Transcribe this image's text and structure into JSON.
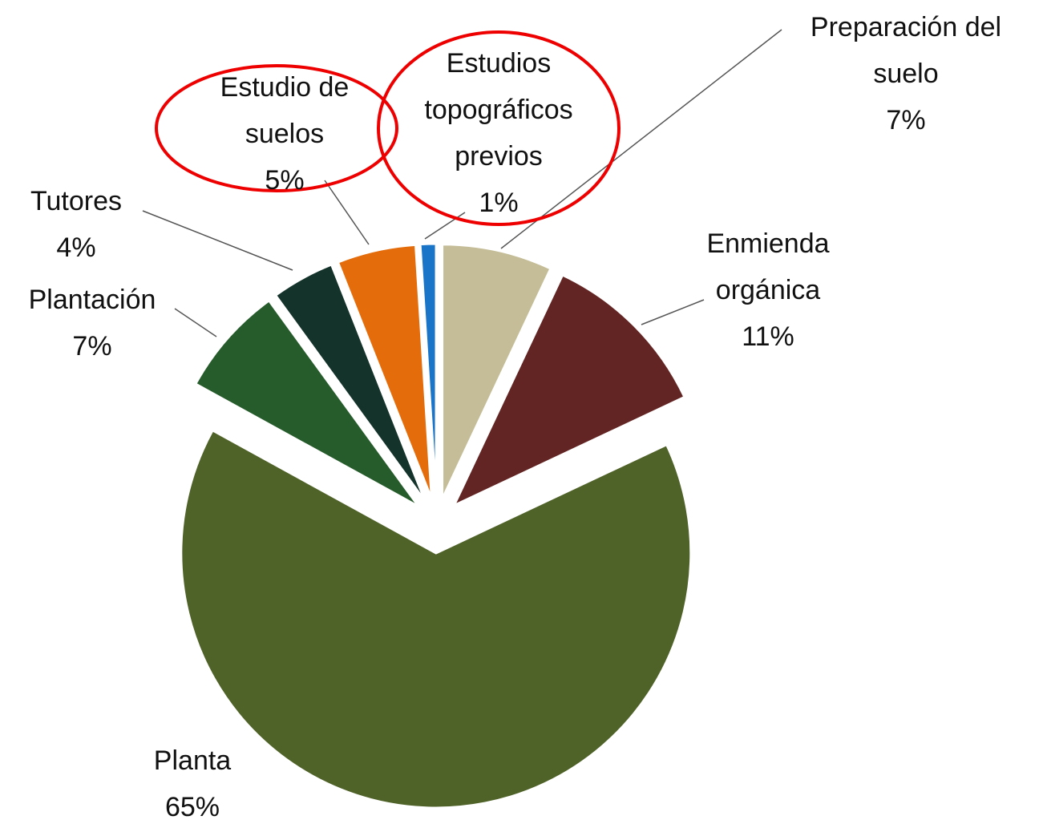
{
  "chart_data": {
    "type": "pie",
    "categories": [
      "Preparación del suelo",
      "Enmienda orgánica",
      "Planta",
      "Plantación",
      "Tutores",
      "Estudio de suelos",
      "Estudios topográficos previos"
    ],
    "values": [
      7,
      11,
      65,
      7,
      4,
      5,
      1
    ],
    "value_labels": [
      "7%",
      "11%",
      "65%",
      "7%",
      "4%",
      "5%",
      "1%"
    ],
    "colors": [
      "#c4bd97",
      "#632523",
      "#4f6228",
      "#265c2b",
      "#14332a",
      "#e46c0a",
      "#1a75c8"
    ]
  }
}
